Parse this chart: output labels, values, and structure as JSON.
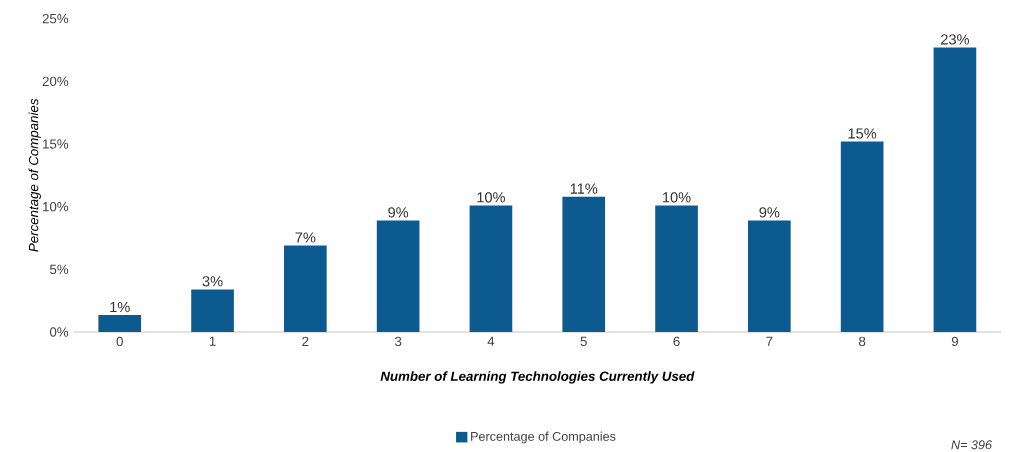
{
  "chart_data": {
    "type": "bar",
    "xlabel": "Number of Learning Technologies Currently Used",
    "ylabel": "Percentage of Companies",
    "categories": [
      "0",
      "1",
      "2",
      "3",
      "4",
      "5",
      "6",
      "7",
      "8",
      "9"
    ],
    "series": [
      {
        "name": "Percentage of Companies",
        "color": "#0d5a91",
        "values": [
          1.35,
          3.4,
          6.9,
          8.9,
          10.1,
          10.8,
          10.1,
          8.9,
          15.2,
          22.7
        ],
        "value_labels": [
          "1%",
          "3%",
          "7%",
          "9%",
          "10%",
          "11%",
          "10%",
          "9%",
          "15%",
          "23%"
        ]
      }
    ],
    "ylim": [
      0,
      25
    ],
    "yticks": [
      {
        "value": 0,
        "label": "0%"
      },
      {
        "value": 5,
        "label": "5%"
      },
      {
        "value": 10,
        "label": "10%"
      },
      {
        "value": 15,
        "label": "15%"
      },
      {
        "value": 20,
        "label": "20%"
      },
      {
        "value": 25,
        "label": "25%"
      }
    ],
    "legend": "bottom",
    "annotations": [
      "N= 396"
    ]
  }
}
